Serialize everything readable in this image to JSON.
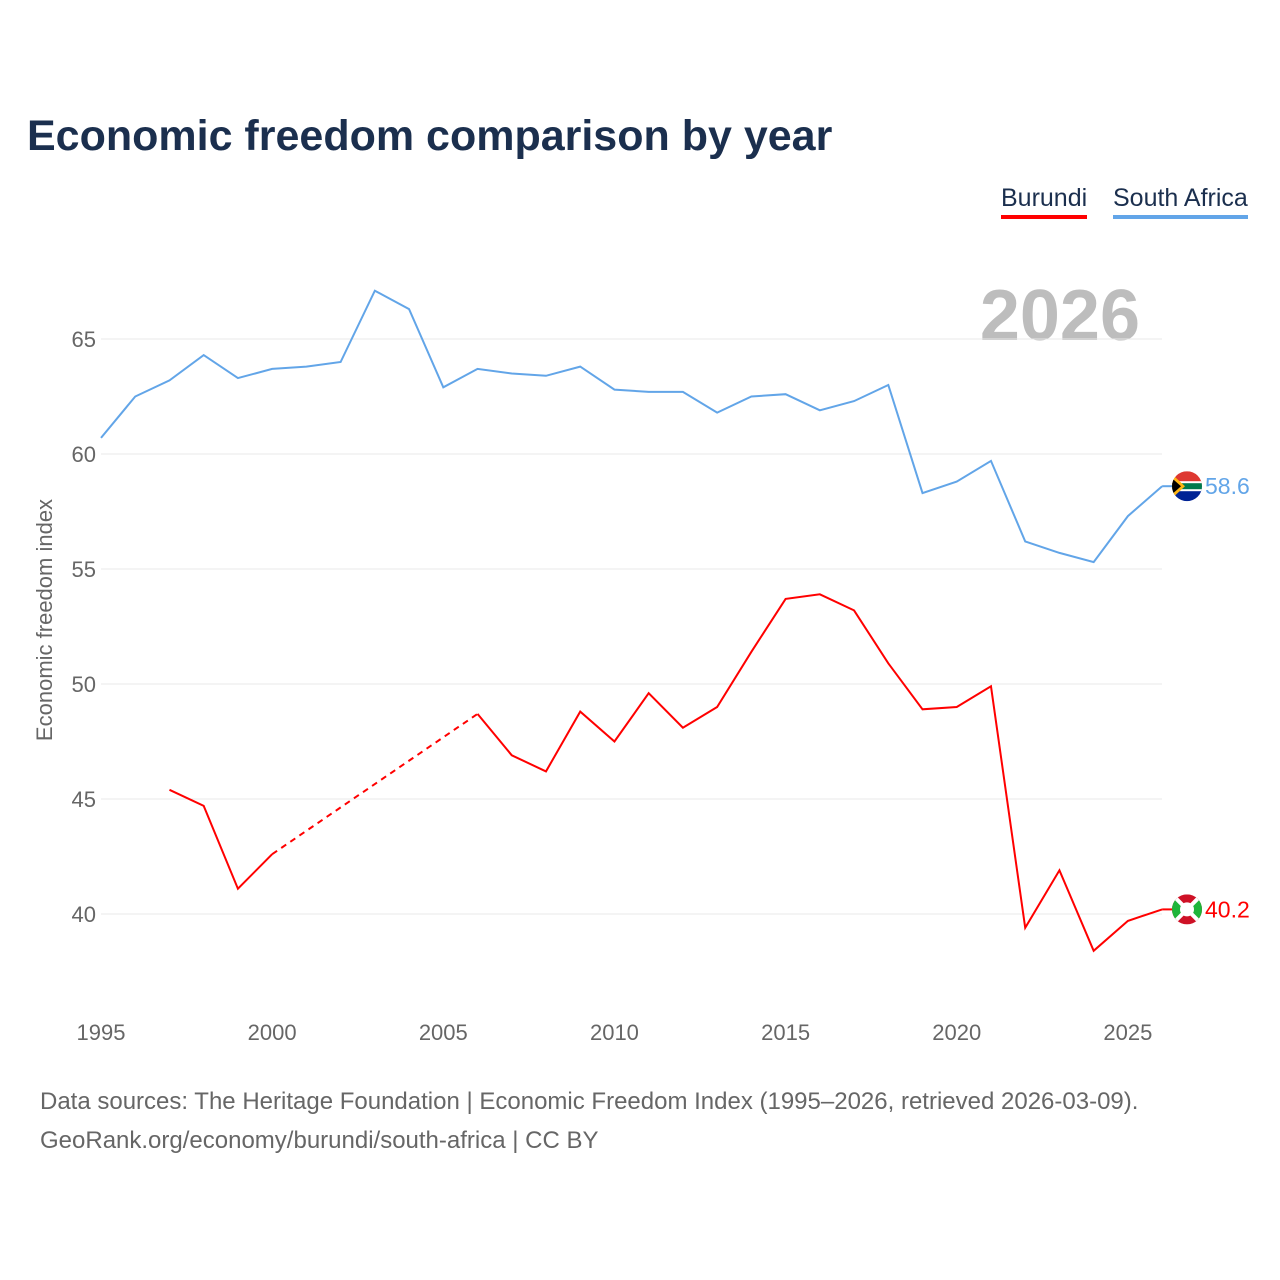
{
  "chart_data": {
    "type": "line",
    "title": "Economic freedom comparison by year",
    "ylabel": "Economic freedom index",
    "xlabel": "",
    "xlim": [
      1995,
      2026
    ],
    "ylim": [
      36.5,
      68
    ],
    "xticks": [
      1995,
      2000,
      2005,
      2010,
      2015,
      2020,
      2025
    ],
    "yticks": [
      40,
      45,
      50,
      55,
      60,
      65
    ],
    "grid": true,
    "legend_position": "top-right",
    "year_label": "2026",
    "x": [
      1995,
      1996,
      1997,
      1998,
      1999,
      2000,
      2001,
      2002,
      2003,
      2004,
      2005,
      2006,
      2007,
      2008,
      2009,
      2010,
      2011,
      2012,
      2013,
      2014,
      2015,
      2016,
      2017,
      2018,
      2019,
      2020,
      2021,
      2022,
      2023,
      2024,
      2025,
      2026
    ],
    "series": [
      {
        "name": "Burundi",
        "color": "#ff0000",
        "end_label": "40.2",
        "flag": "burundi-flag",
        "values": [
          null,
          null,
          45.4,
          44.7,
          41.1,
          42.6,
          null,
          null,
          null,
          null,
          null,
          48.7,
          46.9,
          46.2,
          48.8,
          47.5,
          49.6,
          48.1,
          49.0,
          51.4,
          53.7,
          53.9,
          53.2,
          50.9,
          48.9,
          49.0,
          49.9,
          39.4,
          41.9,
          38.4,
          39.7,
          40.2
        ]
      },
      {
        "name": "South Africa",
        "color": "#62a5e8",
        "end_label": "58.6",
        "flag": "south-africa-flag",
        "values": [
          60.7,
          62.5,
          63.2,
          64.3,
          63.3,
          63.7,
          63.8,
          64.0,
          67.1,
          66.3,
          62.9,
          63.7,
          63.5,
          63.4,
          63.8,
          62.8,
          62.7,
          62.7,
          61.8,
          62.5,
          62.6,
          61.9,
          62.3,
          63.0,
          58.3,
          58.8,
          59.7,
          56.2,
          55.7,
          55.3,
          57.3,
          58.6
        ]
      }
    ]
  },
  "footer": {
    "line1": "Data sources: The Heritage Foundation | Economic Freedom Index (1995–2026, retrieved 2026-03-09).",
    "line2": "GeoRank.org/economy/burundi/south-africa | CC BY"
  }
}
